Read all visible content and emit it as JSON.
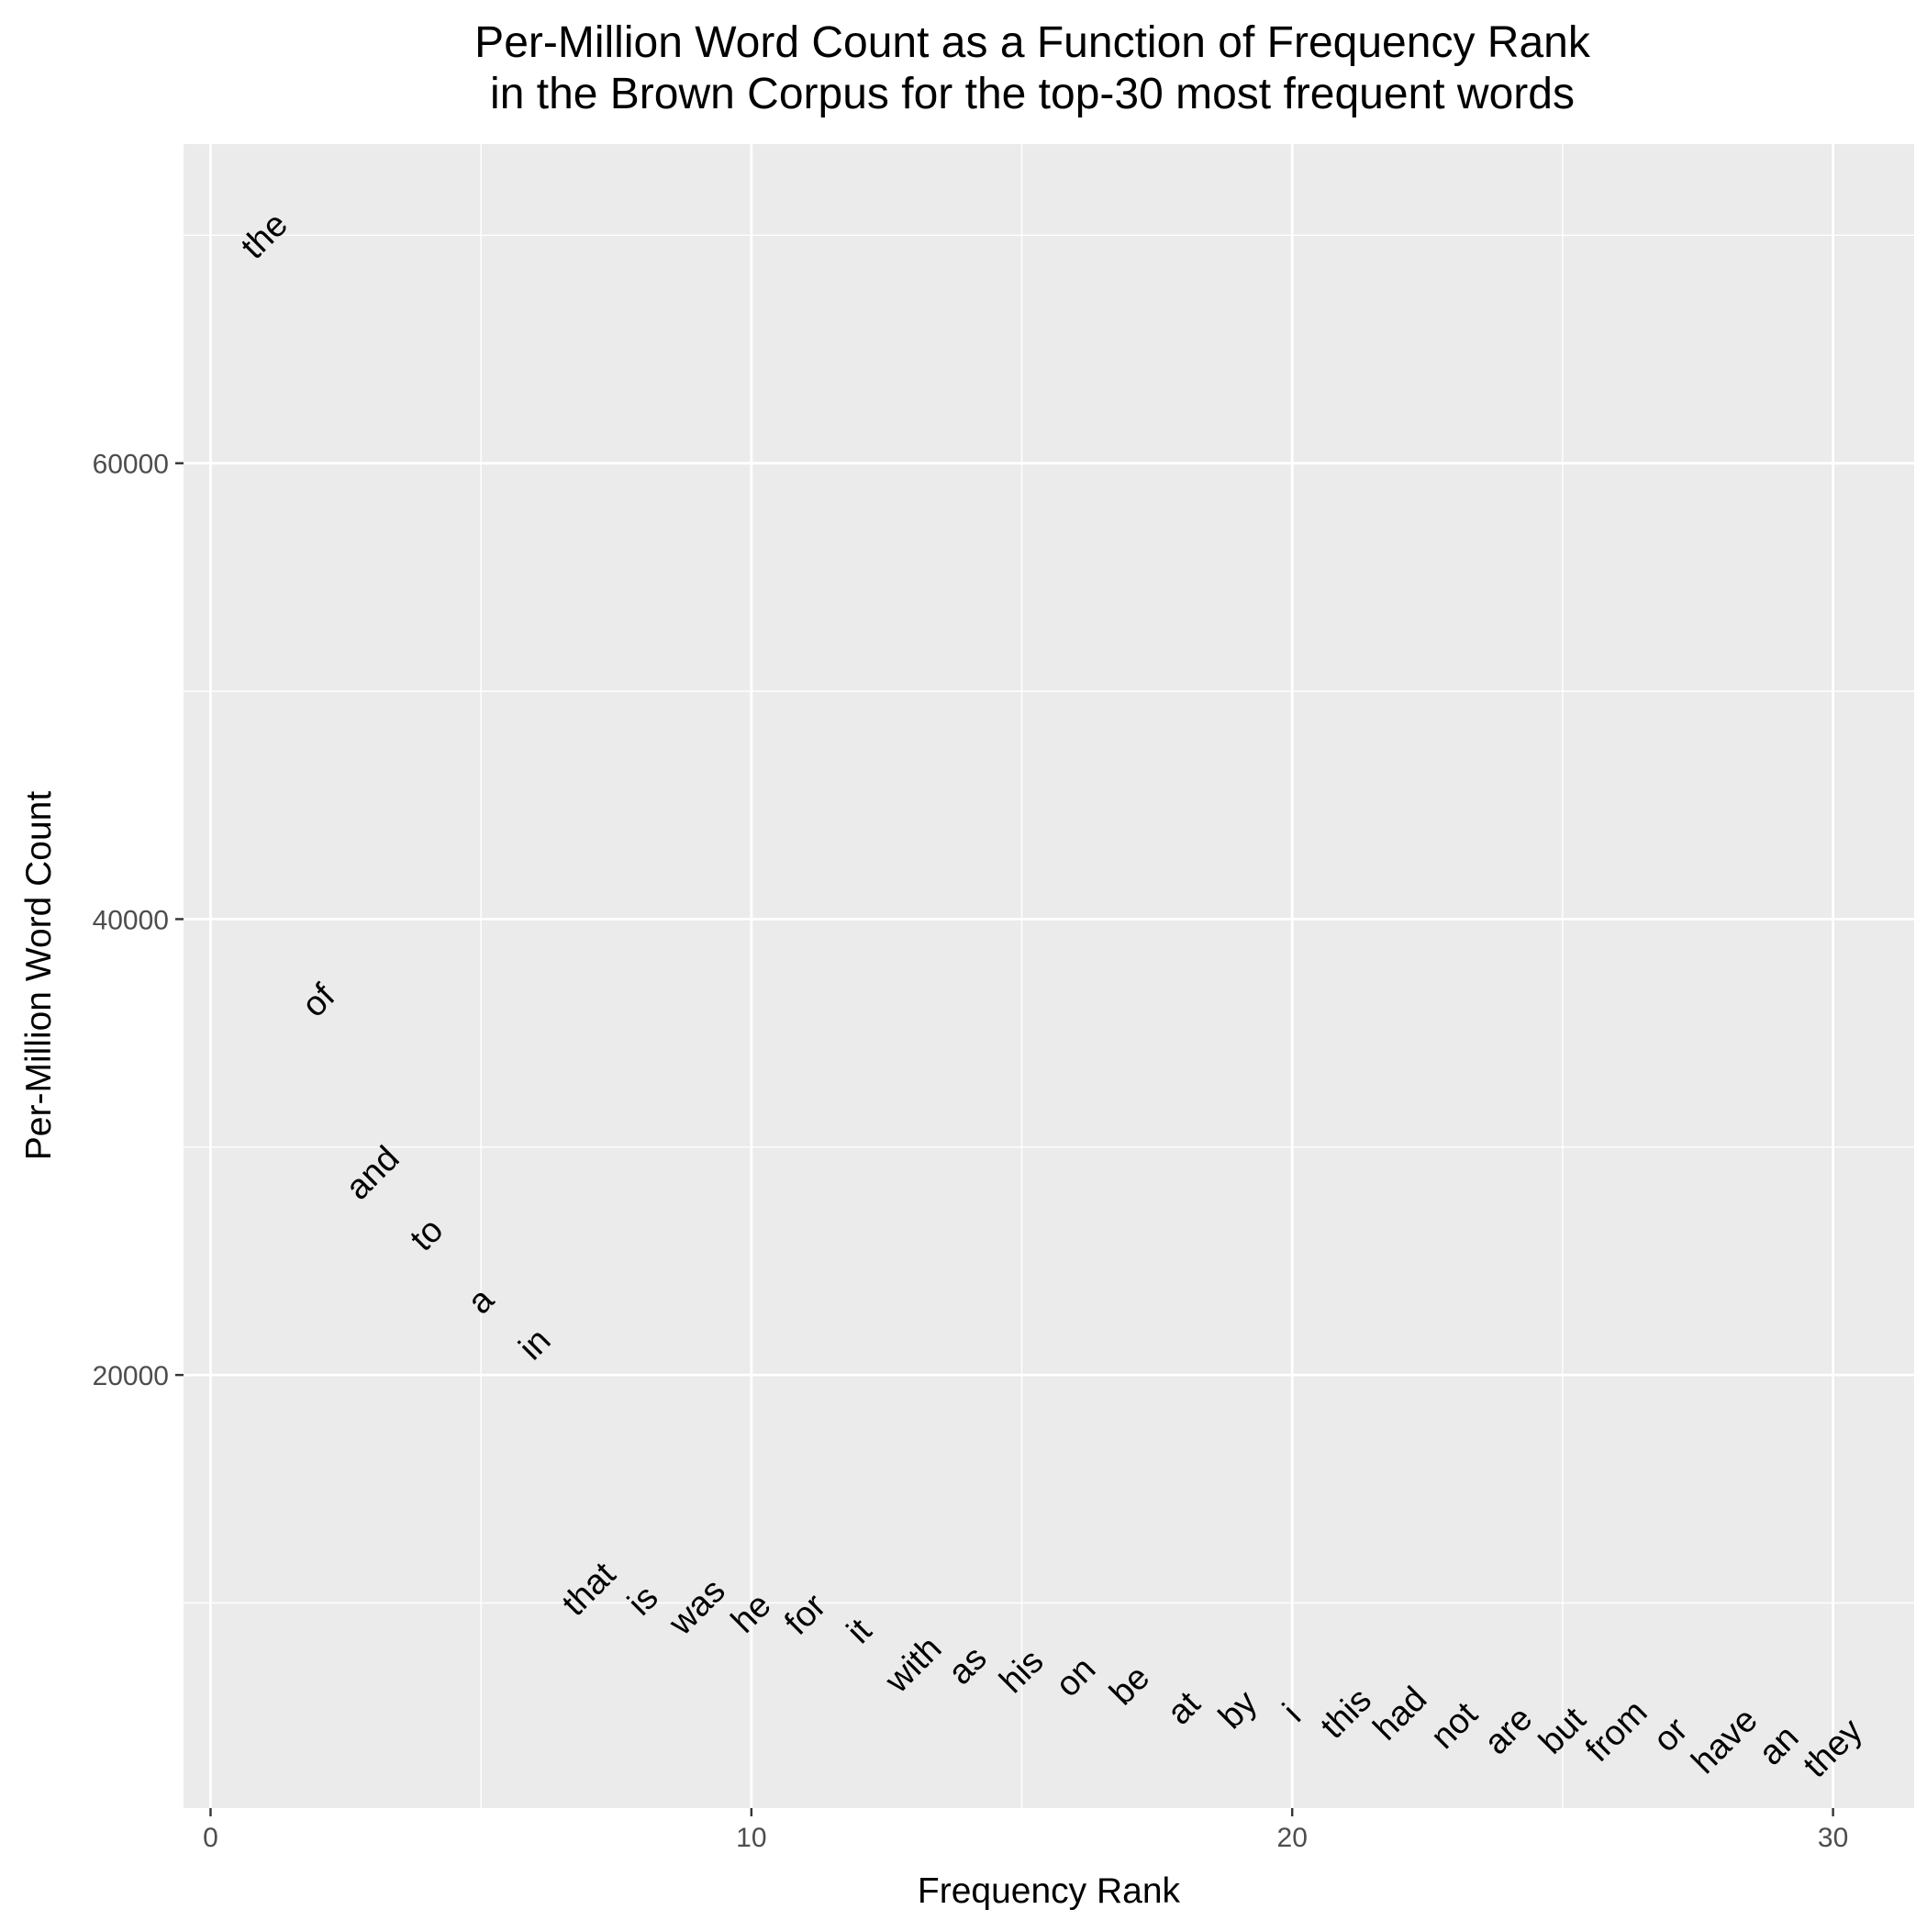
{
  "chart_data": {
    "type": "scatter",
    "title_lines": [
      "Per-Million Word Count as a Function of Frequency Rank",
      "in the Brown Corpus for the top-30 most frequent words"
    ],
    "xlabel": "Frequency Rank",
    "ylabel": "Per-Million Word Count",
    "xlim": [
      -0.5,
      31.5
    ],
    "ylim": [
      1000,
      74000
    ],
    "x_ticks": [
      0,
      10,
      20,
      30
    ],
    "y_ticks": [
      20000,
      40000,
      60000
    ],
    "x_tick_labels": [
      "0",
      "10",
      "20",
      "30"
    ],
    "y_tick_labels": [
      "20000",
      "40000",
      "60000"
    ],
    "grid": true,
    "point_style": "text labels rotated 45 degrees",
    "colors": {
      "panel": "#ebebeb",
      "grid": "#ffffff",
      "text": "#000000",
      "tick_text": "#4d4d4d",
      "tick_mark": "#333333"
    },
    "points": [
      {
        "rank": 1,
        "word": "the",
        "count": 69971
      },
      {
        "rank": 2,
        "word": "of",
        "count": 36411
      },
      {
        "rank": 3,
        "word": "and",
        "count": 28852
      },
      {
        "rank": 4,
        "word": "to",
        "count": 26149
      },
      {
        "rank": 5,
        "word": "a",
        "count": 23237
      },
      {
        "rank": 6,
        "word": "in",
        "count": 21341
      },
      {
        "rank": 7,
        "word": "that",
        "count": 10595
      },
      {
        "rank": 8,
        "word": "is",
        "count": 10099
      },
      {
        "rank": 9,
        "word": "was",
        "count": 9816
      },
      {
        "rank": 10,
        "word": "he",
        "count": 9543
      },
      {
        "rank": 11,
        "word": "for",
        "count": 9489
      },
      {
        "rank": 12,
        "word": "it",
        "count": 8756
      },
      {
        "rank": 13,
        "word": "with",
        "count": 7289
      },
      {
        "rank": 14,
        "word": "as",
        "count": 7250
      },
      {
        "rank": 15,
        "word": "his",
        "count": 6997
      },
      {
        "rank": 16,
        "word": "on",
        "count": 6741
      },
      {
        "rank": 17,
        "word": "be",
        "count": 6377
      },
      {
        "rank": 18,
        "word": "at",
        "count": 5372
      },
      {
        "rank": 19,
        "word": "by",
        "count": 5306
      },
      {
        "rank": 20,
        "word": "i",
        "count": 5164
      },
      {
        "rank": 21,
        "word": "this",
        "count": 5146
      },
      {
        "rank": 22,
        "word": "had",
        "count": 5133
      },
      {
        "rank": 23,
        "word": "not",
        "count": 4609
      },
      {
        "rank": 24,
        "word": "are",
        "count": 4393
      },
      {
        "rank": 25,
        "word": "but",
        "count": 4381
      },
      {
        "rank": 26,
        "word": "from",
        "count": 4369
      },
      {
        "rank": 27,
        "word": "or",
        "count": 4207
      },
      {
        "rank": 28,
        "word": "have",
        "count": 3941
      },
      {
        "rank": 29,
        "word": "an",
        "count": 3747
      },
      {
        "rank": 30,
        "word": "they",
        "count": 3619
      }
    ]
  }
}
